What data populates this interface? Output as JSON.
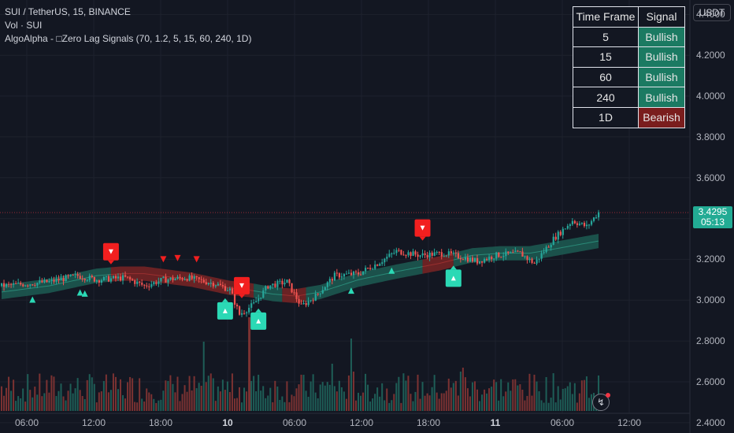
{
  "header": {
    "symbol_line": "SUI / TetherUS, 15, BINANCE",
    "volume_line": "Vol · SUI",
    "indicator_line": "AlgoAlpha - □Zero Lag Signals (70, 1.2, 5, 15, 60, 240, 1D)"
  },
  "currency_button": "USDT",
  "last_price": {
    "value": "3.4295",
    "countdown": "05:13"
  },
  "signal_table": {
    "headers": [
      "Time Frame",
      "Signal"
    ],
    "rows": [
      {
        "tf": "5",
        "signal": "Bullish"
      },
      {
        "tf": "15",
        "signal": "Bullish"
      },
      {
        "tf": "60",
        "signal": "Bullish"
      },
      {
        "tf": "240",
        "signal": "Bullish"
      },
      {
        "tf": "1D",
        "signal": "Bearish"
      }
    ]
  },
  "colors": {
    "background": "#131722",
    "bull": "#26a69a",
    "bear": "#ef5350",
    "bullish_cell": "#1b7a62",
    "bearish_cell": "#7a1d1d",
    "signal_up": "#2bd9b5",
    "signal_down": "#f21f1f"
  },
  "icons": {
    "alert": "lightning-icon"
  },
  "chart_data": {
    "type": "candlestick",
    "y_axis": {
      "ticks": [
        "4.4000",
        "4.2000",
        "4.0000",
        "3.8000",
        "3.6000",
        "3.4000",
        "3.2000",
        "3.0000",
        "2.8000",
        "2.6000",
        "2.4000"
      ],
      "range": [
        2.38,
        4.44
      ]
    },
    "x_axis": {
      "ticks": [
        "06:00",
        "12:00",
        "18:00",
        "10",
        "06:00",
        "12:00",
        "18:00",
        "11",
        "06:00",
        "12:00"
      ],
      "bold_ticks": [
        "10",
        "11"
      ]
    },
    "close_anchors": [
      [
        0,
        3.07
      ],
      [
        10,
        3.08
      ],
      [
        20,
        3.09
      ],
      [
        32,
        3.12
      ],
      [
        40,
        3.1
      ],
      [
        52,
        3.11
      ],
      [
        60,
        3.07
      ],
      [
        68,
        3.1
      ],
      [
        78,
        3.11
      ],
      [
        90,
        3.08
      ],
      [
        96,
        3.05
      ],
      [
        100,
        2.93
      ],
      [
        106,
        2.98
      ],
      [
        112,
        3.07
      ],
      [
        120,
        3.09
      ],
      [
        126,
        2.97
      ],
      [
        132,
        3.02
      ],
      [
        140,
        3.12
      ],
      [
        150,
        3.13
      ],
      [
        158,
        3.18
      ],
      [
        166,
        3.24
      ],
      [
        176,
        3.22
      ],
      [
        186,
        3.23
      ],
      [
        194,
        3.21
      ],
      [
        200,
        3.19
      ],
      [
        208,
        3.22
      ],
      [
        218,
        3.23
      ],
      [
        224,
        3.18
      ],
      [
        232,
        3.3
      ],
      [
        240,
        3.39
      ],
      [
        246,
        3.36
      ],
      [
        251,
        3.43
      ]
    ],
    "band_anchors": [
      [
        0,
        3.04
      ],
      [
        20,
        3.07
      ],
      [
        40,
        3.12
      ],
      [
        50,
        3.13
      ],
      [
        60,
        3.13
      ],
      [
        80,
        3.1
      ],
      [
        96,
        3.06
      ],
      [
        104,
        3.05
      ],
      [
        114,
        3.03
      ],
      [
        124,
        3.02
      ],
      [
        134,
        3.04
      ],
      [
        150,
        3.1
      ],
      [
        166,
        3.14
      ],
      [
        184,
        3.18
      ],
      [
        198,
        3.22
      ],
      [
        210,
        3.23
      ],
      [
        222,
        3.23
      ],
      [
        232,
        3.25
      ],
      [
        251,
        3.29
      ]
    ],
    "band_bear_ranges": [
      [
        46,
        105
      ],
      [
        118,
        127
      ],
      [
        177,
        189
      ]
    ],
    "signals": [
      {
        "bar": 13,
        "dir": "up",
        "size": "small"
      },
      {
        "bar": 33,
        "dir": "up",
        "size": "small"
      },
      {
        "bar": 35,
        "dir": "up",
        "size": "small"
      },
      {
        "bar": 94,
        "dir": "up",
        "size": "large"
      },
      {
        "bar": 108,
        "dir": "up",
        "size": "large"
      },
      {
        "bar": 147,
        "dir": "up",
        "size": "small"
      },
      {
        "bar": 164,
        "dir": "up",
        "size": "small"
      },
      {
        "bar": 190,
        "dir": "up",
        "size": "large"
      },
      {
        "bar": 46,
        "dir": "down",
        "size": "large"
      },
      {
        "bar": 68,
        "dir": "down",
        "size": "small"
      },
      {
        "bar": 74,
        "dir": "down",
        "size": "small"
      },
      {
        "bar": 82,
        "dir": "down",
        "size": "small"
      },
      {
        "bar": 101,
        "dir": "down",
        "size": "large"
      },
      {
        "bar": 177,
        "dir": "down",
        "size": "large"
      }
    ],
    "volume_spikes": {
      "85": 88,
      "84": 32,
      "108": 46,
      "147": 92,
      "148": 50,
      "139": 60,
      "194": 55,
      "193": 50
    }
  }
}
